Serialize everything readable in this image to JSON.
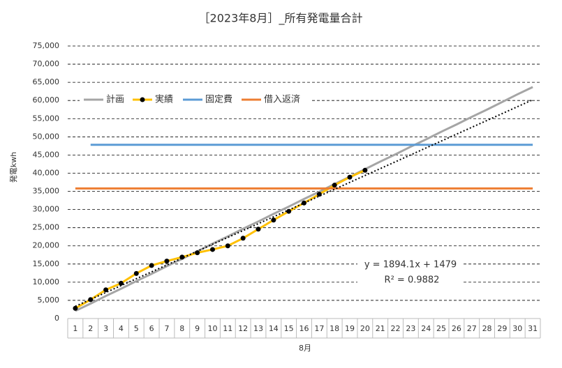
{
  "chart_data": {
    "type": "line",
    "title": "［2023年8月］_所有発電量合計",
    "y_label": "発電kwh",
    "x_label": "8月",
    "categories": [
      1,
      2,
      3,
      4,
      5,
      6,
      7,
      8,
      9,
      10,
      11,
      12,
      13,
      14,
      15,
      16,
      17,
      18,
      19,
      20,
      21,
      22,
      23,
      24,
      25,
      26,
      27,
      28,
      29,
      30,
      31
    ],
    "ylim": [
      0,
      75000
    ],
    "yticks": [
      0,
      {
        "value": 5000,
        "label": "5,000"
      },
      {
        "value": 10000,
        "label": "10,000"
      },
      {
        "value": 15000,
        "label": "15,000"
      },
      {
        "value": 20000,
        "label": "20,000"
      },
      {
        "value": 25000,
        "label": "25,000"
      },
      {
        "value": 30000,
        "label": "30,000"
      },
      {
        "value": 35000,
        "label": "35,000"
      },
      {
        "value": 40000,
        "label": "40,000"
      },
      {
        "value": 45000,
        "label": "45,000"
      },
      {
        "value": 50000,
        "label": "50,000"
      },
      {
        "value": 55000,
        "label": "55,000"
      },
      {
        "value": 60000,
        "label": "60,000"
      },
      {
        "value": 65000,
        "label": "65,000"
      },
      {
        "value": 70000,
        "label": "70,000"
      },
      {
        "value": 75000,
        "label": "75,000"
      }
    ],
    "grid": true,
    "legend": "top-left",
    "series": [
      {
        "name": "計画",
        "color": "#a5a5a5",
        "values": [
          2100,
          4100,
          6200,
          8200,
          10300,
          12300,
          14400,
          16400,
          18500,
          20600,
          22600,
          24700,
          26700,
          28800,
          30800,
          32900,
          34900,
          37000,
          39000,
          41100,
          43200,
          45200,
          47300,
          49300,
          51400,
          53400,
          55500,
          57500,
          59600,
          61700,
          63700
        ]
      },
      {
        "name": "実績",
        "color": "#ffc000",
        "markers": true,
        "values": [
          2800,
          5200,
          7900,
          9700,
          12400,
          14600,
          15800,
          16900,
          18100,
          19000,
          20000,
          22100,
          24600,
          27100,
          29500,
          31800,
          34200,
          36700,
          38900,
          40800,
          null,
          null,
          null,
          null,
          null,
          null,
          null,
          null,
          null,
          null,
          null
        ]
      },
      {
        "name": "固定費",
        "color": "#5b9bd5",
        "values": [
          null,
          47800,
          47800,
          47800,
          47800,
          47800,
          47800,
          47800,
          47800,
          47800,
          47800,
          47800,
          47800,
          47800,
          47800,
          47800,
          47800,
          47800,
          47800,
          47800,
          47800,
          47800,
          47800,
          47800,
          47800,
          47800,
          47800,
          47800,
          47800,
          47800,
          47800
        ]
      },
      {
        "name": "借入返済",
        "color": "#ed7d31",
        "values": [
          35800,
          35800,
          35800,
          35800,
          35800,
          35800,
          35800,
          35800,
          35800,
          35800,
          35800,
          35800,
          35800,
          35800,
          35800,
          35800,
          35800,
          35800,
          35800,
          35800,
          35800,
          35800,
          35800,
          35800,
          35800,
          35800,
          35800,
          35800,
          35800,
          35800,
          35800
        ]
      }
    ],
    "trendline": {
      "x": [
        1,
        31
      ],
      "values": [
        3373,
        60196
      ],
      "color": "#000000"
    },
    "annotations": [
      "y = 1894.1x + 1479",
      "R² = 0.9882"
    ]
  }
}
